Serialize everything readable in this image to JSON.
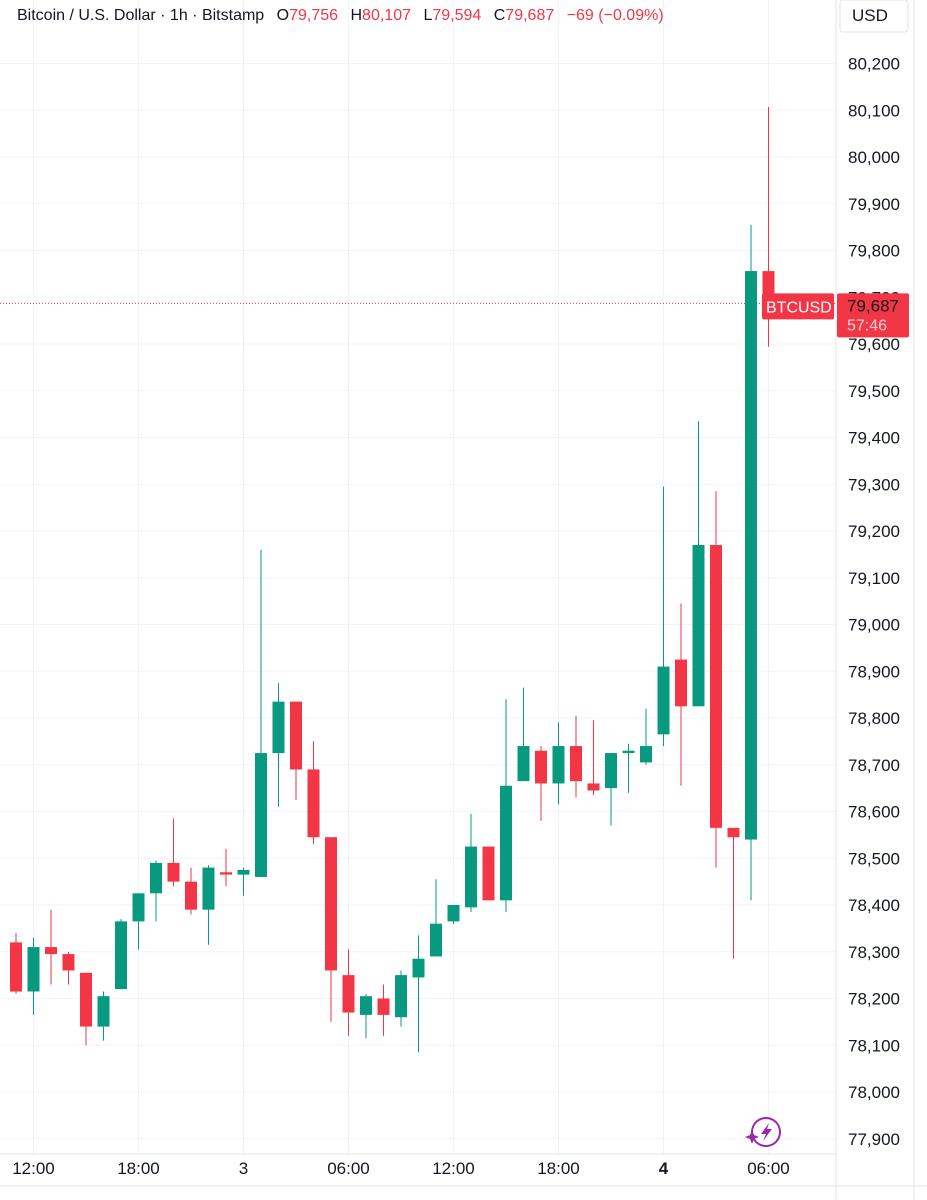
{
  "legend": {
    "symbol": "Bitcoin / U.S. Dollar · 1h · Bitstamp",
    "o_label": "O",
    "o_value": "79,756",
    "h_label": "H",
    "h_value": "80,107",
    "l_label": "L",
    "l_value": "79,594",
    "c_label": "C",
    "c_value": "79,687",
    "change": "−69 (−0.09%)"
  },
  "currency_button": "USD",
  "price_tag": {
    "symbol": "BTCUSD",
    "price": "79,687",
    "countdown": "57:46"
  },
  "colors": {
    "up": "#089981",
    "down": "#f23645",
    "grid": "#f0f3fa",
    "text": "#131722",
    "axis_border": "#e0e3eb",
    "logo": "#9c27b0"
  },
  "logo_icon": "sparkle-lightning-icon",
  "chart_data": {
    "type": "candlestick",
    "interval": "1h",
    "ylim": [
      77870,
      80260
    ],
    "y_ticks": [
      "77,900",
      "78,000",
      "78,100",
      "78,200",
      "78,300",
      "78,400",
      "78,500",
      "78,600",
      "78,700",
      "78,800",
      "78,900",
      "79,000",
      "79,100",
      "79,200",
      "79,300",
      "79,400",
      "79,500",
      "79,600",
      "79,700",
      "79,800",
      "79,900",
      "80,000",
      "80,100",
      "80,200"
    ],
    "y_tick_values": [
      77900,
      78000,
      78100,
      78200,
      78300,
      78400,
      78500,
      78600,
      78700,
      78800,
      78900,
      79000,
      79100,
      79200,
      79300,
      79400,
      79500,
      79600,
      79700,
      79800,
      79900,
      80000,
      80100,
      80200
    ],
    "x_labels": [
      {
        "text": "12:00",
        "index": 1,
        "bold": false
      },
      {
        "text": "18:00",
        "index": 7,
        "bold": false
      },
      {
        "text": "3",
        "index": 13,
        "bold": false
      },
      {
        "text": "06:00",
        "index": 19,
        "bold": false
      },
      {
        "text": "12:00",
        "index": 25,
        "bold": false
      },
      {
        "text": "18:00",
        "index": 31,
        "bold": false
      },
      {
        "text": "4",
        "index": 37,
        "bold": true
      },
      {
        "text": "06:00",
        "index": 43,
        "bold": false
      }
    ],
    "candles": [
      {
        "o": 78320,
        "h": 78340,
        "l": 78210,
        "c": 78215
      },
      {
        "o": 78215,
        "h": 78330,
        "l": 78165,
        "c": 78310
      },
      {
        "o": 78310,
        "h": 78390,
        "l": 78230,
        "c": 78295
      },
      {
        "o": 78295,
        "h": 78300,
        "l": 78230,
        "c": 78260
      },
      {
        "o": 78255,
        "h": 78255,
        "l": 78100,
        "c": 78140
      },
      {
        "o": 78140,
        "h": 78215,
        "l": 78110,
        "c": 78205
      },
      {
        "o": 78220,
        "h": 78370,
        "l": 78220,
        "c": 78365
      },
      {
        "o": 78365,
        "h": 78425,
        "l": 78305,
        "c": 78425
      },
      {
        "o": 78425,
        "h": 78495,
        "l": 78365,
        "c": 78490
      },
      {
        "o": 78490,
        "h": 78585,
        "l": 78440,
        "c": 78450
      },
      {
        "o": 78450,
        "h": 78480,
        "l": 78380,
        "c": 78390
      },
      {
        "o": 78390,
        "h": 78485,
        "l": 78315,
        "c": 78480
      },
      {
        "o": 78470,
        "h": 78520,
        "l": 78440,
        "c": 78465
      },
      {
        "o": 78465,
        "h": 78480,
        "l": 78420,
        "c": 78475
      },
      {
        "o": 78460,
        "h": 79160,
        "l": 78460,
        "c": 78725
      },
      {
        "o": 78725,
        "h": 78875,
        "l": 78610,
        "c": 78835
      },
      {
        "o": 78835,
        "h": 78835,
        "l": 78625,
        "c": 78690
      },
      {
        "o": 78690,
        "h": 78750,
        "l": 78530,
        "c": 78545
      },
      {
        "o": 78545,
        "h": 78545,
        "l": 78150,
        "c": 78260
      },
      {
        "o": 78250,
        "h": 78305,
        "l": 78120,
        "c": 78170
      },
      {
        "o": 78165,
        "h": 78210,
        "l": 78115,
        "c": 78205
      },
      {
        "o": 78200,
        "h": 78230,
        "l": 78120,
        "c": 78165
      },
      {
        "o": 78160,
        "h": 78260,
        "l": 78140,
        "c": 78250
      },
      {
        "o": 78245,
        "h": 78335,
        "l": 78085,
        "c": 78285
      },
      {
        "o": 78290,
        "h": 78455,
        "l": 78290,
        "c": 78360
      },
      {
        "o": 78365,
        "h": 78400,
        "l": 78360,
        "c": 78400
      },
      {
        "o": 78395,
        "h": 78595,
        "l": 78385,
        "c": 78525
      },
      {
        "o": 78525,
        "h": 78525,
        "l": 78410,
        "c": 78410
      },
      {
        "o": 78410,
        "h": 78840,
        "l": 78385,
        "c": 78655
      },
      {
        "o": 78665,
        "h": 78865,
        "l": 78665,
        "c": 78740
      },
      {
        "o": 78730,
        "h": 78740,
        "l": 78580,
        "c": 78660
      },
      {
        "o": 78660,
        "h": 78790,
        "l": 78615,
        "c": 78740
      },
      {
        "o": 78740,
        "h": 78805,
        "l": 78630,
        "c": 78665
      },
      {
        "o": 78660,
        "h": 78795,
        "l": 78635,
        "c": 78645
      },
      {
        "o": 78650,
        "h": 78725,
        "l": 78570,
        "c": 78725
      },
      {
        "o": 78725,
        "h": 78745,
        "l": 78640,
        "c": 78730
      },
      {
        "o": 78705,
        "h": 78820,
        "l": 78700,
        "c": 78740
      },
      {
        "o": 78765,
        "h": 79295,
        "l": 78740,
        "c": 78910
      },
      {
        "o": 78925,
        "h": 79045,
        "l": 78655,
        "c": 78825
      },
      {
        "o": 78825,
        "h": 79435,
        "l": 78825,
        "c": 79170
      },
      {
        "o": 79170,
        "h": 79285,
        "l": 78480,
        "c": 78565
      },
      {
        "o": 78565,
        "h": 78565,
        "l": 78285,
        "c": 78545
      },
      {
        "o": 78540,
        "h": 79855,
        "l": 78410,
        "c": 79756
      },
      {
        "o": 79756,
        "h": 80107,
        "l": 79594,
        "c": 79687
      }
    ]
  }
}
